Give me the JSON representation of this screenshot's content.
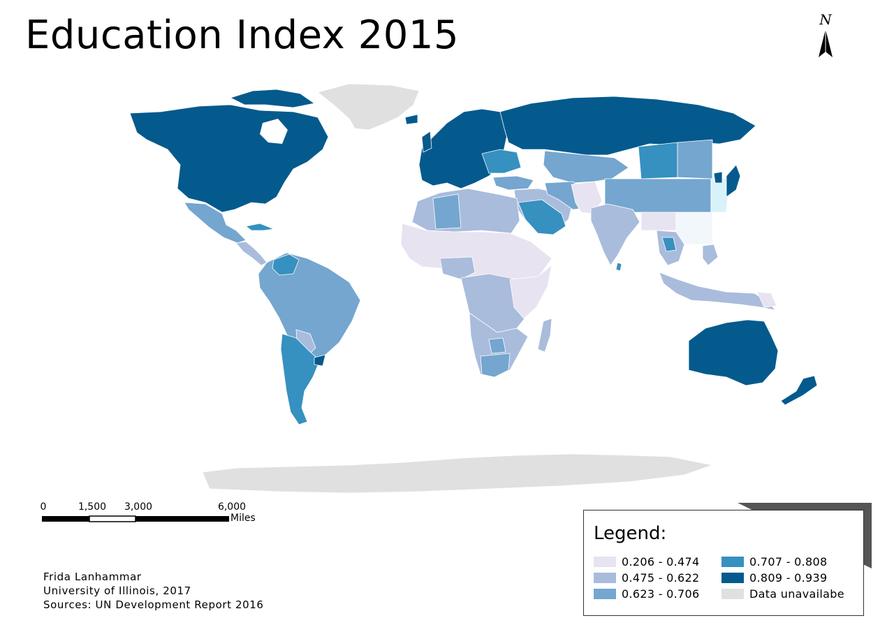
{
  "title": "Education Index 2015",
  "north_label": "N",
  "scale": {
    "ticks": [
      "0",
      "1,500",
      "3,000",
      "6,000"
    ],
    "units": "Miles"
  },
  "credits": {
    "author": "Frida Lanhammar",
    "institution": "University of Illinois, 2017",
    "sources": "Sources: UN Development Report 2016"
  },
  "legend": {
    "title": "Legend:",
    "items": [
      {
        "label": "0.206 - 0.474",
        "color": "#e7e3f0"
      },
      {
        "label": "0.475 - 0.622",
        "color": "#a9bcdc"
      },
      {
        "label": "0.623 - 0.706",
        "color": "#74a6cf"
      },
      {
        "label": "0.707 - 0.808",
        "color": "#3690c0"
      },
      {
        "label": "0.809 - 0.939",
        "color": "#045a8d"
      },
      {
        "label": "Data unavailabe",
        "color": "#e0e0e0"
      }
    ]
  }
}
